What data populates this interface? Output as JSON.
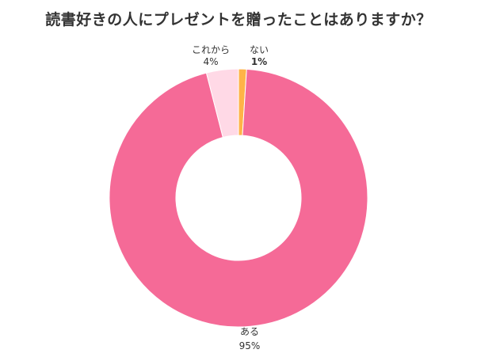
{
  "chart_data": {
    "type": "pie",
    "title": "読書好きの人にプレゼントを贈ったことはありますか？",
    "slices": [
      {
        "label": "ない",
        "value": 1,
        "display": "1%",
        "color": "#FFB347",
        "emphasis": true
      },
      {
        "label": "ある",
        "value": 95,
        "display": "95%",
        "color": "#F56A97",
        "emphasis": false
      },
      {
        "label": "これから",
        "value": 4,
        "display": "4%",
        "color": "#FFD9E6",
        "emphasis": false
      }
    ],
    "donut": true,
    "start": "top",
    "direction": "clockwise"
  }
}
